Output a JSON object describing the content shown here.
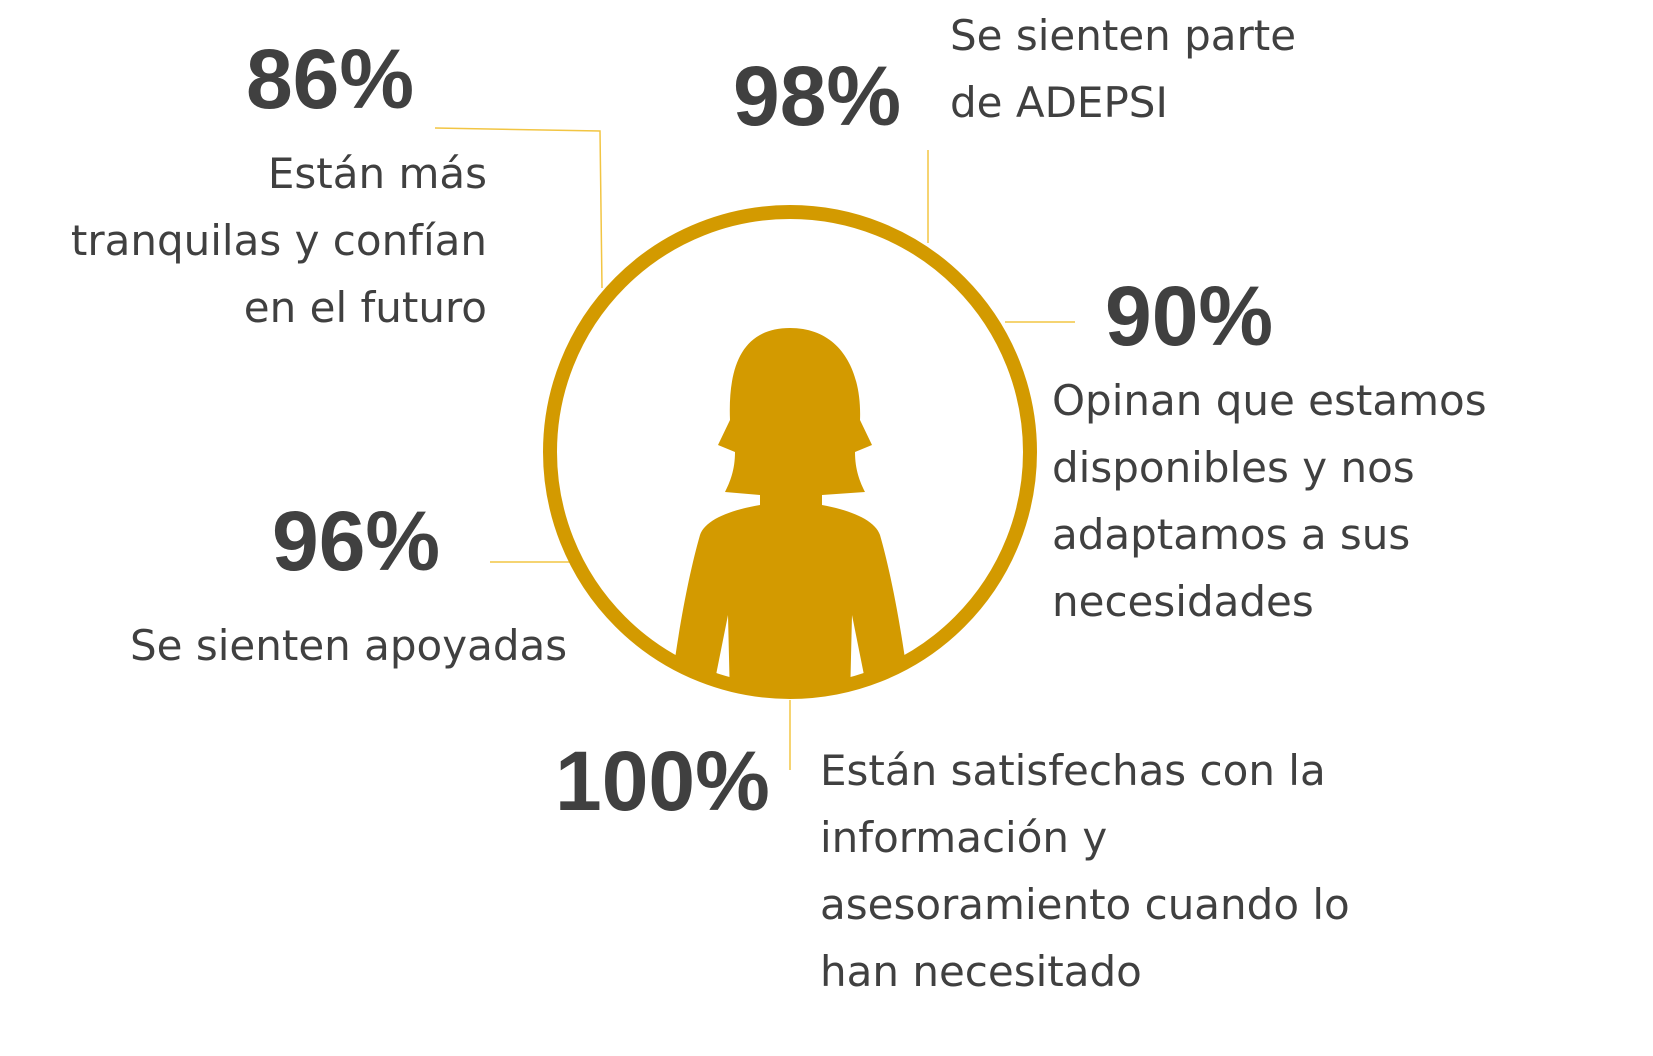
{
  "stats": [
    {
      "percent": "86%",
      "lines": [
        "Están más",
        "tranquilas y confían",
        "en el futuro"
      ]
    },
    {
      "percent": "98%",
      "lines": [
        "Se sienten parte",
        "de ADEPSI"
      ]
    },
    {
      "percent": "90%",
      "lines": [
        "Opinan que estamos",
        "disponibles y nos",
        "adaptamos a sus",
        "necesidades"
      ]
    },
    {
      "percent": "96%",
      "lines": [
        "Se sienten apoyadas"
      ]
    },
    {
      "percent": "100%",
      "lines": [
        "Están satisfechas con la",
        "información y",
        "asesoramiento cuando lo",
        "han necesitado"
      ]
    }
  ]
}
